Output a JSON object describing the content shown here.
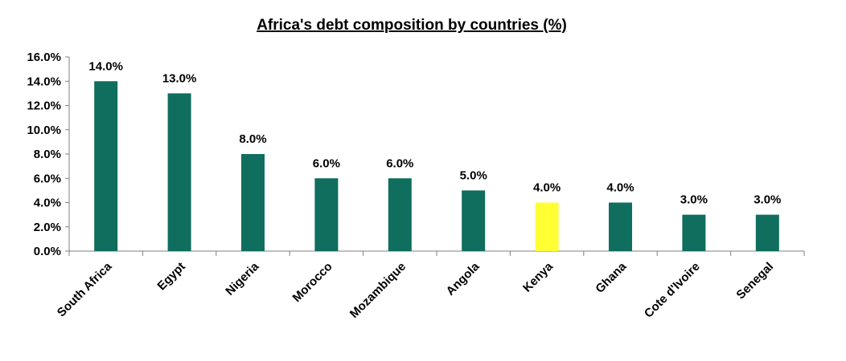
{
  "chart_data": {
    "type": "bar",
    "title": "Africa's debt composition by countries (%)",
    "xlabel": "",
    "ylabel": "",
    "categories": [
      "South Africa",
      "Egypt",
      "Nigeria",
      "Morocco",
      "Mozambique",
      "Angola",
      "Kenya",
      "Ghana",
      "Cote d'Ivoire",
      "Senegal"
    ],
    "values": [
      14.0,
      13.0,
      8.0,
      6.0,
      6.0,
      5.0,
      4.0,
      4.0,
      3.0,
      3.0
    ],
    "data_labels": [
      "14.0%",
      "13.0%",
      "8.0%",
      "6.0%",
      "6.0%",
      "5.0%",
      "4.0%",
      "4.0%",
      "3.0%",
      "3.0%"
    ],
    "ylim": [
      0,
      16
    ],
    "yticks": [
      0,
      2,
      4,
      6,
      8,
      10,
      12,
      14,
      16
    ],
    "ytick_labels": [
      "0.0%",
      "2.0%",
      "4.0%",
      "6.0%",
      "8.0%",
      "10.0%",
      "12.0%",
      "14.0%",
      "16.0%"
    ],
    "grid": false,
    "legend": "none",
    "colors": {
      "bar": "#0f6e5e",
      "highlight_bar": "#ffff33",
      "highlight_category": "Kenya",
      "axis": "#808080"
    }
  }
}
